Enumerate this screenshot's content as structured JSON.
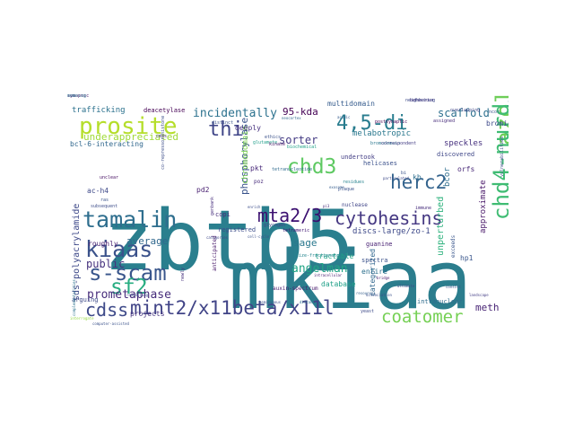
{
  "words": [
    {
      "text": "zbtb5",
      "color": "#2a7f8e",
      "rot": 0
    },
    {
      "text": "mkiaa",
      "color": "#2b7d8d",
      "rot": 0
    },
    {
      "text": "prosite",
      "color": "#b5de2b",
      "rot": 0
    },
    {
      "text": "tamalin",
      "color": "#2e6e8e",
      "rot": 0
    },
    {
      "text": "kiaas",
      "color": "#3b528b",
      "rot": 0
    },
    {
      "text": "s-scam",
      "color": "#39568c",
      "rot": 0
    },
    {
      "text": "sf2",
      "color": "#27ad81",
      "rot": 0
    },
    {
      "text": "cdss",
      "color": "#3e4a89",
      "rot": 0
    },
    {
      "text": "mint2/x11beta/x11l",
      "color": "#414487",
      "rot": 0
    },
    {
      "text": "4,5-di",
      "color": "#287c8e",
      "rot": 0
    },
    {
      "text": "azol 2-yl",
      "color": "#6ece58",
      "rot": -90
    },
    {
      "text": "chd4-nurd",
      "color": "#3fbc73",
      "rot": -90
    },
    {
      "text": "chd3",
      "color": "#5ec962",
      "rot": 0
    },
    {
      "text": "herc2",
      "color": "#33638d",
      "rot": 0
    },
    {
      "text": "mta2/3",
      "color": "#3b0f70",
      "rot": 0
    },
    {
      "text": "cytohesins",
      "color": "#453882",
      "rot": 0
    },
    {
      "text": "coatomer",
      "color": "#75d054",
      "rot": 0
    },
    {
      "text": "thi",
      "color": "#404688",
      "rot": 0
    },
    {
      "text": "incidentally",
      "color": "#2c728e",
      "rot": 0
    },
    {
      "text": "scaffold",
      "color": "#2d708e",
      "rot": 0
    },
    {
      "text": "sorter",
      "color": "#443b84",
      "rot": 0
    },
    {
      "text": "95-kda",
      "color": "#440154",
      "rot": 0
    },
    {
      "text": "underappreciated",
      "color": "#a0da39",
      "rot": 0
    },
    {
      "text": "angelman",
      "color": "#21a585",
      "rot": 0
    },
    {
      "text": "prometaphase",
      "color": "#472d7b",
      "rot": 0
    },
    {
      "text": "public",
      "color": "#46327e",
      "rot": 0
    },
    {
      "text": "average",
      "color": "#31688e",
      "rot": 0
    },
    {
      "text": "sage",
      "color": "#2a788e",
      "rot": 0
    },
    {
      "text": "phosphorylase",
      "color": "#3a548c",
      "rot": -90
    },
    {
      "text": "meth",
      "color": "#482475",
      "rot": 0
    },
    {
      "text": "trafficking",
      "color": "#2c728e",
      "rot": 0
    },
    {
      "text": "deacetylase",
      "color": "#440154",
      "rot": 0
    },
    {
      "text": "multidomain",
      "color": "#365c8d",
      "rot": 0
    },
    {
      "text": "bcor",
      "color": "#2e6e8e",
      "rot": -90
    },
    {
      "text": "bromide",
      "color": "#3e4989",
      "rot": 0
    },
    {
      "text": "speckles",
      "color": "#46307e",
      "rot": 0
    },
    {
      "text": "discovered",
      "color": "#3f4788",
      "rot": 0
    },
    {
      "text": "melabotropic",
      "color": "#2a788e",
      "rot": 0
    },
    {
      "text": "undertook",
      "color": "#433e85",
      "rot": 0
    },
    {
      "text": "sds-polyacrylamide",
      "color": "#3e4989",
      "rot": -90
    },
    {
      "text": "pd2",
      "color": "#481f70",
      "rot": 0
    },
    {
      "text": "pkt",
      "color": "#482979",
      "rot": 0
    },
    {
      "text": "chromodomain",
      "color": "#7ad151",
      "rot": -90
    },
    {
      "text": "bcl-6-interacting",
      "color": "#31688e",
      "rot": 0
    },
    {
      "text": "ac-h4",
      "color": "#3e4989",
      "rot": 0
    },
    {
      "text": "projects",
      "color": "#46337f",
      "rot": 0
    },
    {
      "text": "roughly",
      "color": "#482071",
      "rot": 0
    },
    {
      "text": "arguing",
      "color": "#3e4a89",
      "rot": 0
    },
    {
      "text": "auxin-spectrum",
      "color": "#481b6d",
      "rot": 0
    },
    {
      "text": "entire",
      "color": "#2d708e",
      "rot": 0
    },
    {
      "text": "tractable",
      "color": "#20a386",
      "rot": 0
    },
    {
      "text": "spectra",
      "color": "#3b528b",
      "rot": 0
    },
    {
      "text": "guanine",
      "color": "#482173",
      "rot": 0
    },
    {
      "text": "registered",
      "color": "#3d4d8a",
      "rot": 0
    },
    {
      "text": "copi",
      "color": "#472c7a",
      "rot": 0
    },
    {
      "text": "database",
      "color": "#1fa088",
      "rot": 0
    },
    {
      "text": "hp1",
      "color": "#39568c",
      "rot": 0
    },
    {
      "text": "approximate",
      "color": "#481769",
      "rot": -90
    },
    {
      "text": "unperturbed",
      "color": "#2db27d",
      "rot": -90
    },
    {
      "text": "intranuclear",
      "color": "#2f6c8e",
      "rot": 0
    },
    {
      "text": "discs-large/zo-1",
      "color": "#3e4989",
      "rot": 0
    },
    {
      "text": "deeply",
      "color": "#46307e",
      "rot": 0
    },
    {
      "text": "size-fractionated",
      "color": "#25858e",
      "rot": 0
    },
    {
      "text": "kb",
      "color": "#2e6f8e",
      "rot": 0
    },
    {
      "text": "orfs",
      "color": "#482878",
      "rot": 0
    },
    {
      "text": "helicases",
      "color": "#3b518b",
      "rot": 0
    },
    {
      "text": "poz",
      "color": "#472a7a",
      "rot": 0
    },
    {
      "text": "nuclease",
      "color": "#404588",
      "rot": 0
    },
    {
      "text": "categorized",
      "color": "#31678e",
      "rot": -90
    },
    {
      "text": "exceeds",
      "color": "#39568c",
      "rot": -90
    },
    {
      "text": "tetranucleotide",
      "color": "#2f6b8e",
      "rot": 0
    },
    {
      "text": "bi",
      "color": "#3a548c",
      "rot": 0
    },
    {
      "text": "co-repressor-histone",
      "color": "#3d4e8a",
      "rot": -90
    },
    {
      "text": "genbank",
      "color": "#472f7d",
      "rot": -90
    },
    {
      "text": "anticipated",
      "color": "#48186a",
      "rot": -90
    },
    {
      "text": "newly",
      "color": "#46307e",
      "rot": -90
    },
    {
      "text": "glycogen",
      "color": "#414487",
      "rot": 0
    },
    {
      "text": "remodeling",
      "color": "#3d4d8a",
      "rot": 0
    },
    {
      "text": "dissociation",
      "color": "#3b518b",
      "rot": 0
    },
    {
      "text": "ultimate",
      "color": "#3e4989",
      "rot": 0
    },
    {
      "text": "resources",
      "color": "#355f8d",
      "rot": 0
    },
    {
      "text": "bridge",
      "color": "#481a6c",
      "rot": 0
    },
    {
      "text": "consist",
      "color": "#3a548c",
      "rot": 0
    },
    {
      "text": "landscape",
      "color": "#433e85",
      "rot": 0
    },
    {
      "text": "immune",
      "color": "#472e7c",
      "rot": 0
    },
    {
      "text": "potentialities",
      "color": "#2d718e",
      "rot": -90
    },
    {
      "text": "vulnerabilities",
      "color": "#3d4e8a",
      "rot": -90
    },
    {
      "text": "complementarities",
      "color": "#2c738e",
      "rot": -90
    },
    {
      "text": "computer-assisted",
      "color": "#3b528b",
      "rot": 0
    },
    {
      "text": "overlapping",
      "color": "#3f4788",
      "rot": 0
    },
    {
      "text": "bromodomain",
      "color": "#2a768e",
      "rot": 0
    },
    {
      "text": "neighboring",
      "color": "#3e4a89",
      "rot": 0
    },
    {
      "text": "postsynaptic",
      "color": "#440154",
      "rot": 0
    },
    {
      "text": "correspondent",
      "color": "#433d84",
      "rot": 0
    },
    {
      "text": "interrogate",
      "color": "#95d840",
      "rot": 0
    },
    {
      "text": "behaviour",
      "color": "#443983",
      "rot": 0
    },
    {
      "text": "distinct",
      "color": "#3b528b",
      "rot": 0
    },
    {
      "text": "glutamate",
      "color": "#1f9e89",
      "rot": 0
    },
    {
      "text": "kinase",
      "color": "#481668",
      "rot": 0
    },
    {
      "text": "acidic",
      "color": "#365c8d",
      "rot": 0
    },
    {
      "text": "ncor",
      "color": "#3a548c",
      "rot": 0
    },
    {
      "text": "assigned",
      "color": "#472c7a",
      "rot": 0
    },
    {
      "text": "particulated",
      "color": "#3e4a89",
      "rot": 0
    },
    {
      "text": "residues",
      "color": "#26828e",
      "rot": 0
    },
    {
      "text": "plaque",
      "color": "#3b528b",
      "rot": 0
    },
    {
      "text": "exosome",
      "color": "#365d8d",
      "rot": 0
    },
    {
      "text": "pi3",
      "color": "#472d7b",
      "rot": 0
    },
    {
      "text": "subsequent",
      "color": "#3d4d8a",
      "rot": 0
    },
    {
      "text": "ras",
      "color": "#3a548c",
      "rot": 0
    },
    {
      "text": "cmas",
      "color": "#46307e",
      "rot": 0
    },
    {
      "text": "unclear",
      "color": "#471063",
      "rot": 0
    },
    {
      "text": "enrich",
      "color": "#3d4e8a",
      "rot": 0
    },
    {
      "text": "ethics",
      "color": "#3b528b",
      "rot": 0
    },
    {
      "text": "neocortex",
      "color": "#31678e",
      "rot": 0
    },
    {
      "text": "biochemical",
      "color": "#1fa287",
      "rot": 0
    },
    {
      "text": "categories",
      "color": "#3f4889",
      "rot": 0
    },
    {
      "text": "tetrameric",
      "color": "#3b0f70",
      "rot": 0
    },
    {
      "text": "intracellular",
      "color": "#481f70",
      "rot": 0
    },
    {
      "text": "hemizygous",
      "color": "#3c4f8a",
      "rot": 0
    },
    {
      "text": "distant",
      "color": "#2e6e8e",
      "rot": 0
    },
    {
      "text": "cell-cycle",
      "color": "#3b528b",
      "rot": 0
    },
    {
      "text": "yeast",
      "color": "#3e4a89",
      "rot": 0
    },
    {
      "text": "synaptic",
      "color": "#481b6d",
      "rot": 0
    },
    {
      "text": "ldl",
      "color": "#3d4d8a",
      "rot": 0
    },
    {
      "text": "homolog",
      "color": "#2d708e",
      "rot": 0
    }
  ]
}
